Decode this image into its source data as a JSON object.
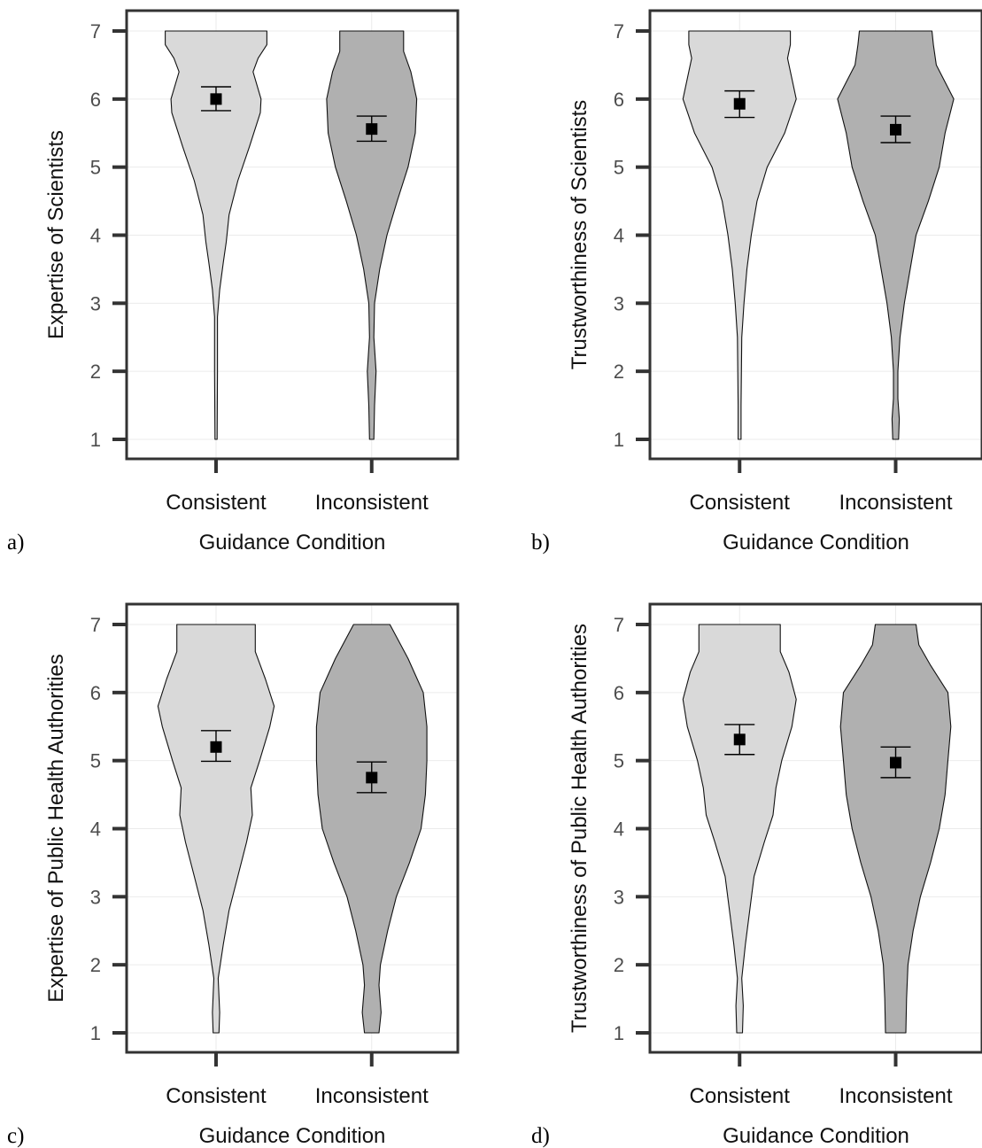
{
  "chart_data": [
    {
      "type": "violin",
      "panel_label": "a)",
      "xlabel": "Guidance Condition",
      "ylabel": "Expertise of Scientists",
      "ylim": [
        1,
        7
      ],
      "yticks": [
        1,
        2,
        3,
        4,
        5,
        6,
        7
      ],
      "grid": true,
      "categories": [
        "Consistent",
        "Inconsistent"
      ],
      "colors": [
        "#d9d9d9",
        "#b0b0b0"
      ],
      "series": [
        {
          "category": "Consistent",
          "mean": 6.0,
          "ci_low": 5.83,
          "ci_high": 6.18,
          "density_profile": [
            [
              1.0,
              0.015
            ],
            [
              2.0,
              0.02
            ],
            [
              2.8,
              0.02
            ],
            [
              3.2,
              0.05
            ],
            [
              3.6,
              0.1
            ],
            [
              3.9,
              0.14
            ],
            [
              4.3,
              0.18
            ],
            [
              4.8,
              0.3
            ],
            [
              5.3,
              0.46
            ],
            [
              5.8,
              0.61
            ],
            [
              6.0,
              0.62
            ],
            [
              6.4,
              0.51
            ],
            [
              6.6,
              0.58
            ],
            [
              6.8,
              0.7
            ],
            [
              7.0,
              0.7
            ]
          ]
        },
        {
          "category": "Inconsistent",
          "mean": 5.56,
          "ci_low": 5.38,
          "ci_high": 5.75,
          "density_profile": [
            [
              1.0,
              0.03
            ],
            [
              1.5,
              0.04
            ],
            [
              2.0,
              0.06
            ],
            [
              2.5,
              0.03
            ],
            [
              3.0,
              0.04
            ],
            [
              3.5,
              0.11
            ],
            [
              4.0,
              0.21
            ],
            [
              4.5,
              0.35
            ],
            [
              5.0,
              0.5
            ],
            [
              5.5,
              0.6
            ],
            [
              6.0,
              0.62
            ],
            [
              6.4,
              0.54
            ],
            [
              6.7,
              0.44
            ],
            [
              7.0,
              0.44
            ]
          ]
        }
      ]
    },
    {
      "type": "violin",
      "panel_label": "b)",
      "xlabel": "Guidance Condition",
      "ylabel": "Trustworthiness of Scientists",
      "ylim": [
        1,
        7
      ],
      "yticks": [
        1,
        2,
        3,
        4,
        5,
        6,
        7
      ],
      "grid": true,
      "categories": [
        "Consistent",
        "Inconsistent"
      ],
      "colors": [
        "#d9d9d9",
        "#b0b0b0"
      ],
      "series": [
        {
          "category": "Consistent",
          "mean": 5.93,
          "ci_low": 5.73,
          "ci_high": 6.12,
          "density_profile": [
            [
              1.0,
              0.02
            ],
            [
              1.5,
              0.02
            ],
            [
              2.0,
              0.025
            ],
            [
              2.5,
              0.03
            ],
            [
              3.0,
              0.06
            ],
            [
              3.5,
              0.1
            ],
            [
              4.0,
              0.16
            ],
            [
              4.5,
              0.24
            ],
            [
              5.0,
              0.38
            ],
            [
              5.5,
              0.62
            ],
            [
              6.0,
              0.78
            ],
            [
              6.3,
              0.72
            ],
            [
              6.6,
              0.66
            ],
            [
              6.8,
              0.7
            ],
            [
              7.0,
              0.7
            ]
          ]
        },
        {
          "category": "Inconsistent",
          "mean": 5.55,
          "ci_low": 5.36,
          "ci_high": 5.75,
          "density_profile": [
            [
              1.0,
              0.04
            ],
            [
              1.3,
              0.05
            ],
            [
              1.6,
              0.03
            ],
            [
              2.0,
              0.03
            ],
            [
              2.5,
              0.06
            ],
            [
              3.0,
              0.12
            ],
            [
              3.5,
              0.2
            ],
            [
              4.0,
              0.28
            ],
            [
              4.5,
              0.45
            ],
            [
              5.0,
              0.6
            ],
            [
              5.5,
              0.68
            ],
            [
              6.0,
              0.8
            ],
            [
              6.5,
              0.56
            ],
            [
              6.8,
              0.52
            ],
            [
              7.0,
              0.5
            ]
          ]
        }
      ]
    },
    {
      "type": "violin",
      "panel_label": "c)",
      "xlabel": "Guidance Condition",
      "ylabel": "Expertise of Public Health Authorities",
      "ylim": [
        1,
        7
      ],
      "yticks": [
        1,
        2,
        3,
        4,
        5,
        6,
        7
      ],
      "grid": true,
      "categories": [
        "Consistent",
        "Inconsistent"
      ],
      "colors": [
        "#d9d9d9",
        "#b0b0b0"
      ],
      "series": [
        {
          "category": "Consistent",
          "mean": 5.2,
          "ci_low": 4.99,
          "ci_high": 5.44,
          "density_profile": [
            [
              1.0,
              0.04
            ],
            [
              1.3,
              0.05
            ],
            [
              1.8,
              0.03
            ],
            [
              2.3,
              0.1
            ],
            [
              2.8,
              0.18
            ],
            [
              3.3,
              0.3
            ],
            [
              3.8,
              0.42
            ],
            [
              4.2,
              0.5
            ],
            [
              4.6,
              0.48
            ],
            [
              5.0,
              0.6
            ],
            [
              5.5,
              0.74
            ],
            [
              5.8,
              0.8
            ],
            [
              6.2,
              0.68
            ],
            [
              6.6,
              0.54
            ],
            [
              7.0,
              0.54
            ]
          ]
        },
        {
          "category": "Inconsistent",
          "mean": 4.75,
          "ci_low": 4.53,
          "ci_high": 4.98,
          "density_profile": [
            [
              1.0,
              0.1
            ],
            [
              1.3,
              0.13
            ],
            [
              1.7,
              0.1
            ],
            [
              2.0,
              0.12
            ],
            [
              2.5,
              0.22
            ],
            [
              3.0,
              0.34
            ],
            [
              3.5,
              0.52
            ],
            [
              4.0,
              0.68
            ],
            [
              4.5,
              0.74
            ],
            [
              5.0,
              0.76
            ],
            [
              5.5,
              0.76
            ],
            [
              6.0,
              0.71
            ],
            [
              6.5,
              0.5
            ],
            [
              7.0,
              0.25
            ]
          ]
        }
      ]
    },
    {
      "type": "violin",
      "panel_label": "d)",
      "xlabel": "Guidance Condition",
      "ylabel": "Trustworthiness of Public Health Authorities",
      "ylim": [
        1,
        7
      ],
      "yticks": [
        1,
        2,
        3,
        4,
        5,
        6,
        7
      ],
      "grid": true,
      "categories": [
        "Consistent",
        "Inconsistent"
      ],
      "colors": [
        "#d9d9d9",
        "#b0b0b0"
      ],
      "series": [
        {
          "category": "Consistent",
          "mean": 5.31,
          "ci_low": 5.09,
          "ci_high": 5.53,
          "density_profile": [
            [
              1.0,
              0.04
            ],
            [
              1.4,
              0.05
            ],
            [
              1.8,
              0.03
            ],
            [
              2.3,
              0.08
            ],
            [
              2.8,
              0.14
            ],
            [
              3.3,
              0.2
            ],
            [
              3.8,
              0.34
            ],
            [
              4.2,
              0.46
            ],
            [
              4.6,
              0.5
            ],
            [
              5.0,
              0.58
            ],
            [
              5.5,
              0.72
            ],
            [
              5.9,
              0.78
            ],
            [
              6.3,
              0.68
            ],
            [
              6.6,
              0.56
            ],
            [
              7.0,
              0.56
            ]
          ]
        },
        {
          "category": "Inconsistent",
          "mean": 4.97,
          "ci_low": 4.75,
          "ci_high": 5.2,
          "density_profile": [
            [
              1.0,
              0.14
            ],
            [
              1.5,
              0.15
            ],
            [
              2.0,
              0.17
            ],
            [
              2.5,
              0.24
            ],
            [
              3.0,
              0.34
            ],
            [
              3.5,
              0.48
            ],
            [
              4.0,
              0.6
            ],
            [
              4.5,
              0.68
            ],
            [
              5.0,
              0.72
            ],
            [
              5.5,
              0.76
            ],
            [
              6.0,
              0.72
            ],
            [
              6.4,
              0.48
            ],
            [
              6.7,
              0.32
            ],
            [
              7.0,
              0.28
            ]
          ]
        }
      ]
    }
  ]
}
